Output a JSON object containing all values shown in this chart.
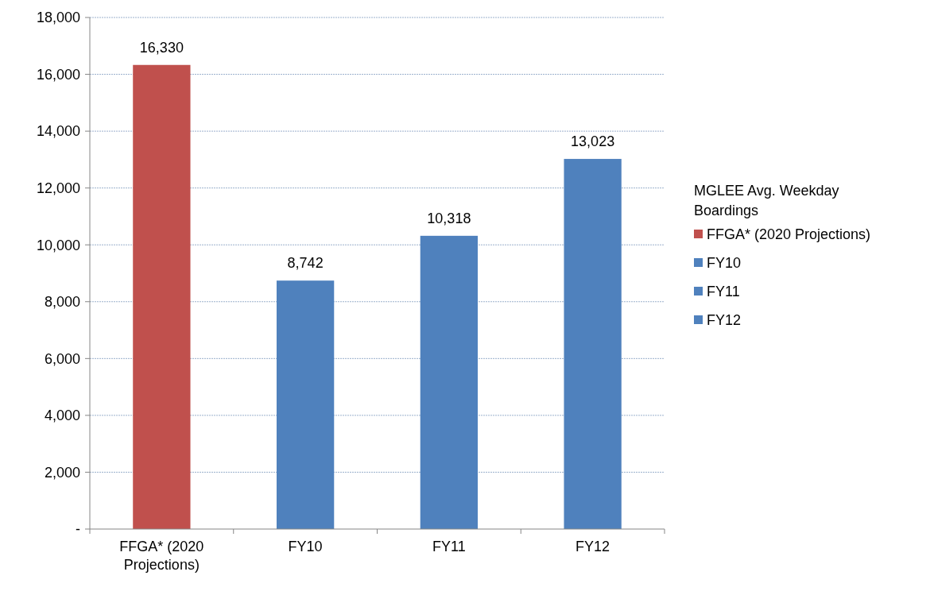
{
  "chart_data": {
    "type": "bar",
    "stacked": true,
    "categories": [
      "FFGA* (2020 Projections)",
      "FY10",
      "FY11",
      "FY12"
    ],
    "series": [
      {
        "name": "FFGA* (2020 Projections)",
        "color": "#c0504d",
        "values": [
          16330,
          null,
          null,
          null
        ],
        "value_labels": [
          "16,330",
          null,
          null,
          null
        ]
      },
      {
        "name": "FY10",
        "color": "#4f81bd",
        "values": [
          null,
          8742,
          null,
          null
        ],
        "value_labels": [
          null,
          "8,742",
          null,
          null
        ]
      },
      {
        "name": "FY11",
        "color": "#4f81bd",
        "values": [
          null,
          null,
          10318,
          null
        ],
        "value_labels": [
          null,
          null,
          "10,318",
          null
        ]
      },
      {
        "name": "FY12",
        "color": "#4f81bd",
        "values": [
          null,
          null,
          null,
          13023
        ],
        "value_labels": [
          null,
          null,
          null,
          "13,023"
        ]
      }
    ],
    "ylim": [
      0,
      18000
    ],
    "yticks": [
      {
        "value": 0,
        "label": "-"
      },
      {
        "value": 2000,
        "label": "2,000"
      },
      {
        "value": 4000,
        "label": "4,000"
      },
      {
        "value": 6000,
        "label": "6,000"
      },
      {
        "value": 8000,
        "label": "8,000"
      },
      {
        "value": 10000,
        "label": "10,000"
      },
      {
        "value": 12000,
        "label": "12,000"
      },
      {
        "value": 14000,
        "label": "14,000"
      },
      {
        "value": 16000,
        "label": "16,000"
      },
      {
        "value": 18000,
        "label": "18,000"
      }
    ],
    "grid": "y",
    "legend": "right",
    "legend_title": "MGLEE Avg. Weekday Boardings"
  }
}
